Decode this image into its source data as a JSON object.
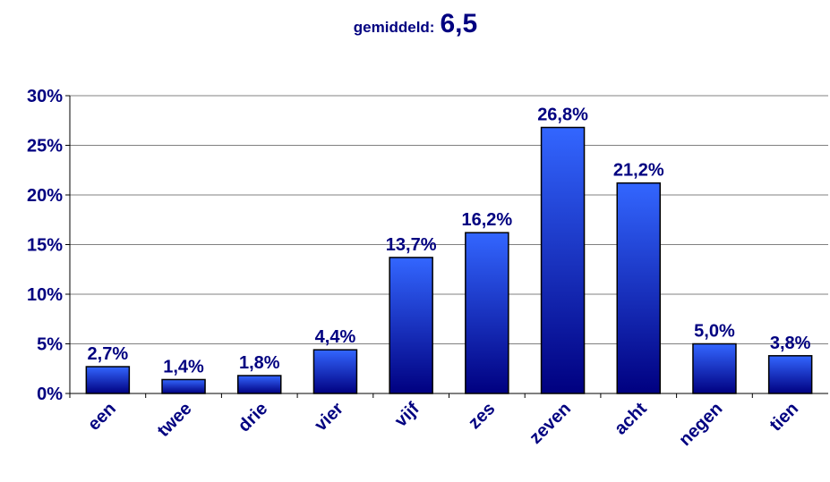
{
  "chart_data": {
    "type": "bar",
    "title": "gemiddeld:",
    "title_value": "6,5",
    "categories": [
      "een",
      "twee",
      "drie",
      "vier",
      "vijf",
      "zes",
      "zeven",
      "acht",
      "negen",
      "tien"
    ],
    "values": [
      2.7,
      1.4,
      1.8,
      4.4,
      13.7,
      16.2,
      26.8,
      21.2,
      5.0,
      3.8
    ],
    "value_labels": [
      "2,7%",
      "1,4%",
      "1,8%",
      "4,4%",
      "13,7%",
      "16,2%",
      "26,8%",
      "21,2%",
      "5,0%",
      "3,8%"
    ],
    "color": "#3366ff",
    "ylim": [
      0,
      30
    ],
    "yticks": [
      {
        "value": 0,
        "label": "0%"
      },
      {
        "value": 5,
        "label": "5%"
      },
      {
        "value": 10,
        "label": "10%"
      },
      {
        "value": 15,
        "label": "15%"
      },
      {
        "value": 20,
        "label": "20%"
      },
      {
        "value": 25,
        "label": "25%"
      },
      {
        "value": 30,
        "label": "30%"
      }
    ],
    "grid": true
  }
}
